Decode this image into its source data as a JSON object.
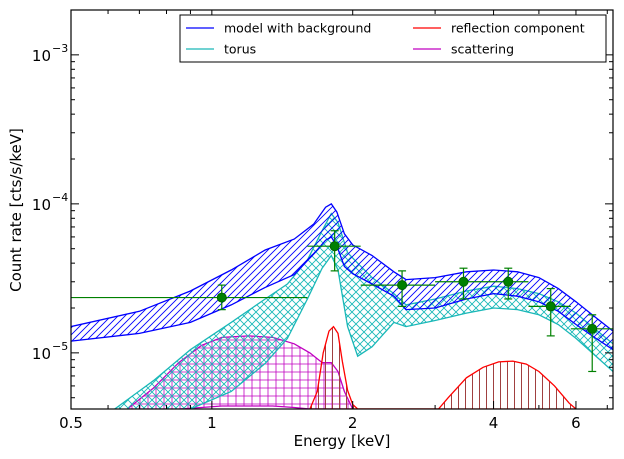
{
  "chart_data": {
    "type": "line",
    "xlabel": "Energy [keV]",
    "ylabel": "Count rate [cts/s/keV]",
    "xscale": "log",
    "yscale": "log",
    "xlim": [
      0.5,
      7.2
    ],
    "ylim": [
      4.2e-06,
      0.002
    ],
    "x_ticks": [
      {
        "value": 0.5,
        "label": "0.5"
      },
      {
        "value": 1,
        "label": "1"
      },
      {
        "value": 2,
        "label": "2"
      },
      {
        "value": 4,
        "label": "4"
      },
      {
        "value": 6,
        "label": "6"
      }
    ],
    "y_ticks": [
      {
        "value": 1e-05,
        "mantissa": "10",
        "exp": "−5"
      },
      {
        "value": 0.0001,
        "mantissa": "10",
        "exp": "−4"
      },
      {
        "value": 0.001,
        "mantissa": "10",
        "exp": "−3"
      }
    ],
    "legend": {
      "position": "top-right",
      "entries": [
        {
          "label": "model with background",
          "color": "#0000ff"
        },
        {
          "label": "reflection component",
          "color": "#ff0000"
        },
        {
          "label": "torus",
          "color": "#1ab8b8"
        },
        {
          "label": "scattering",
          "color": "#c000c0"
        }
      ]
    },
    "series": [
      {
        "name": "model with background",
        "color": "#0000ff",
        "x": [
          0.5,
          0.7,
          0.9,
          1.1,
          1.3,
          1.5,
          1.65,
          1.75,
          1.8,
          1.85,
          1.92,
          2.0,
          2.2,
          2.45,
          2.6,
          3.0,
          3.5,
          4.0,
          4.5,
          5.0,
          5.5,
          6.0,
          6.5,
          7.2
        ],
        "upper": [
          1.5e-05,
          1.9e-05,
          2.6e-05,
          3.6e-05,
          4.9e-05,
          5.8e-05,
          7.3e-05,
          9.5e-05,
          0.0001,
          8.8e-05,
          6.3e-05,
          5.3e-05,
          4.5e-05,
          3.5e-05,
          3.1e-05,
          3.2e-05,
          3.5e-05,
          3.6e-05,
          3.5e-05,
          3.2e-05,
          2.7e-05,
          2.2e-05,
          1.8e-05,
          1.4e-05
        ],
        "lower": [
          1.2e-05,
          1.35e-05,
          1.6e-05,
          2.1e-05,
          2.75e-05,
          3.35e-05,
          4.6e-05,
          5.7e-05,
          6e-05,
          5.2e-05,
          3.8e-05,
          3.4e-05,
          2.9e-05,
          2.4e-05,
          1.95e-05,
          2e-05,
          2.3e-05,
          2.5e-05,
          2.4e-05,
          2.2e-05,
          1.9e-05,
          1.55e-05,
          1.3e-05,
          1.05e-05
        ]
      },
      {
        "name": "torus",
        "color": "#1ab8b8",
        "x": [
          0.62,
          0.75,
          0.9,
          1.1,
          1.3,
          1.45,
          1.6,
          1.72,
          1.8,
          1.86,
          1.95,
          2.05,
          2.2,
          2.45,
          2.6,
          3.0,
          3.5,
          4.0,
          4.5,
          5.0,
          5.5,
          6.0,
          6.5,
          7.2
        ],
        "upper": [
          4.2e-06,
          6.5e-06,
          1.05e-05,
          1.6e-05,
          2.3e-05,
          2.9e-05,
          4.2e-05,
          6.6e-05,
          8.6e-05,
          7.5e-05,
          4.7e-05,
          4e-05,
          3.2e-05,
          2.5e-05,
          2.1e-05,
          2.3e-05,
          2.6e-05,
          2.8e-05,
          2.7e-05,
          2.5e-05,
          2.2e-05,
          1.85e-05,
          1.5e-05,
          1.15e-05
        ],
        "lower": [
          null,
          null,
          4.2e-06,
          5.5e-06,
          8.5e-06,
          1.25e-05,
          2.3e-05,
          3.7e-05,
          4.5e-05,
          3.6e-05,
          1.5e-05,
          9.5e-06,
          1.1e-05,
          1.6e-05,
          1.5e-05,
          1.65e-05,
          1.85e-05,
          2e-05,
          1.95e-05,
          1.8e-05,
          1.55e-05,
          1.25e-05,
          1e-05,
          7.5e-06
        ]
      },
      {
        "name": "scattering",
        "color": "#c000c0",
        "x": [
          0.66,
          0.75,
          0.85,
          0.95,
          1.05,
          1.2,
          1.35,
          1.5,
          1.62,
          1.72,
          1.8,
          1.86,
          1.92,
          2.0
        ],
        "upper": [
          4.2e-06,
          5.8e-06,
          8.6e-06,
          1.12e-05,
          1.27e-05,
          1.3e-05,
          1.27e-05,
          1.15e-05,
          1e-05,
          8.6e-06,
          8.6e-06,
          7.5e-06,
          5.5e-06,
          4.2e-06
        ],
        "lower": [
          4.2e-06,
          4.2e-06,
          4.2e-06,
          4.3e-06,
          4.4e-06,
          4.4e-06,
          4.4e-06,
          4.3e-06,
          4.2e-06,
          4.2e-06,
          4.2e-06,
          4.2e-06,
          4.2e-06,
          4.2e-06
        ]
      },
      {
        "name": "reflection component",
        "color": "#ff0000",
        "x": [
          1.62,
          1.68,
          1.73,
          1.78,
          1.82,
          1.86,
          1.9,
          1.95,
          2.0,
          2.05,
          3.05,
          3.2,
          3.5,
          3.8,
          4.1,
          4.4,
          4.7,
          5.0,
          5.4,
          5.8,
          6.0
        ],
        "upper": [
          4.2e-06,
          5.5e-06,
          1e-05,
          1.4e-05,
          1.5e-05,
          1.35e-05,
          8.8e-06,
          5.6e-06,
          4.5e-06,
          4.2e-06,
          4.2e-06,
          5e-06,
          6.8e-06,
          8e-06,
          8.7e-06,
          8.8e-06,
          8.4e-06,
          7.5e-06,
          6e-06,
          4.6e-06,
          4.2e-06
        ],
        "lower": [
          4.2e-06,
          4.2e-06,
          4.2e-06,
          4.2e-06,
          4.2e-06,
          4.2e-06,
          4.2e-06,
          4.2e-06,
          4.2e-06,
          4.2e-06,
          4.2e-06,
          4.2e-06,
          4.2e-06,
          4.2e-06,
          4.2e-06,
          4.2e-06,
          4.2e-06,
          4.2e-06,
          4.2e-06,
          4.2e-06,
          4.2e-06
        ]
      }
    ],
    "data_points": {
      "name": "data",
      "color": "#008000",
      "marker_color": "#006400",
      "points": [
        {
          "x": 1.05,
          "y": 2.35e-05,
          "xlo": 0.5,
          "xhi": 1.6,
          "ylo": 1.95e-05,
          "yhi": 2.85e-05
        },
        {
          "x": 1.83,
          "y": 5.2e-05,
          "xlo": 1.6,
          "xhi": 2.08,
          "ylo": 3.55e-05,
          "yhi": 6.6e-05
        },
        {
          "x": 2.55,
          "y": 2.85e-05,
          "xlo": 2.08,
          "xhi": 3.0,
          "ylo": 2.05e-05,
          "yhi": 3.55e-05
        },
        {
          "x": 3.45,
          "y": 3e-05,
          "xlo": 3.0,
          "xhi": 3.95,
          "ylo": 2.3e-05,
          "yhi": 3.7e-05
        },
        {
          "x": 4.3,
          "y": 3e-05,
          "xlo": 3.95,
          "xhi": 4.75,
          "ylo": 2.3e-05,
          "yhi": 3.7e-05
        },
        {
          "x": 5.3,
          "y": 2.05e-05,
          "xlo": 4.75,
          "xhi": 5.85,
          "ylo": 1.3e-05,
          "yhi": 2.7e-05
        },
        {
          "x": 6.5,
          "y": 1.45e-05,
          "xlo": 5.85,
          "xhi": 7.2,
          "ylo": 7.5e-06,
          "yhi": 1.8e-05
        }
      ]
    }
  }
}
